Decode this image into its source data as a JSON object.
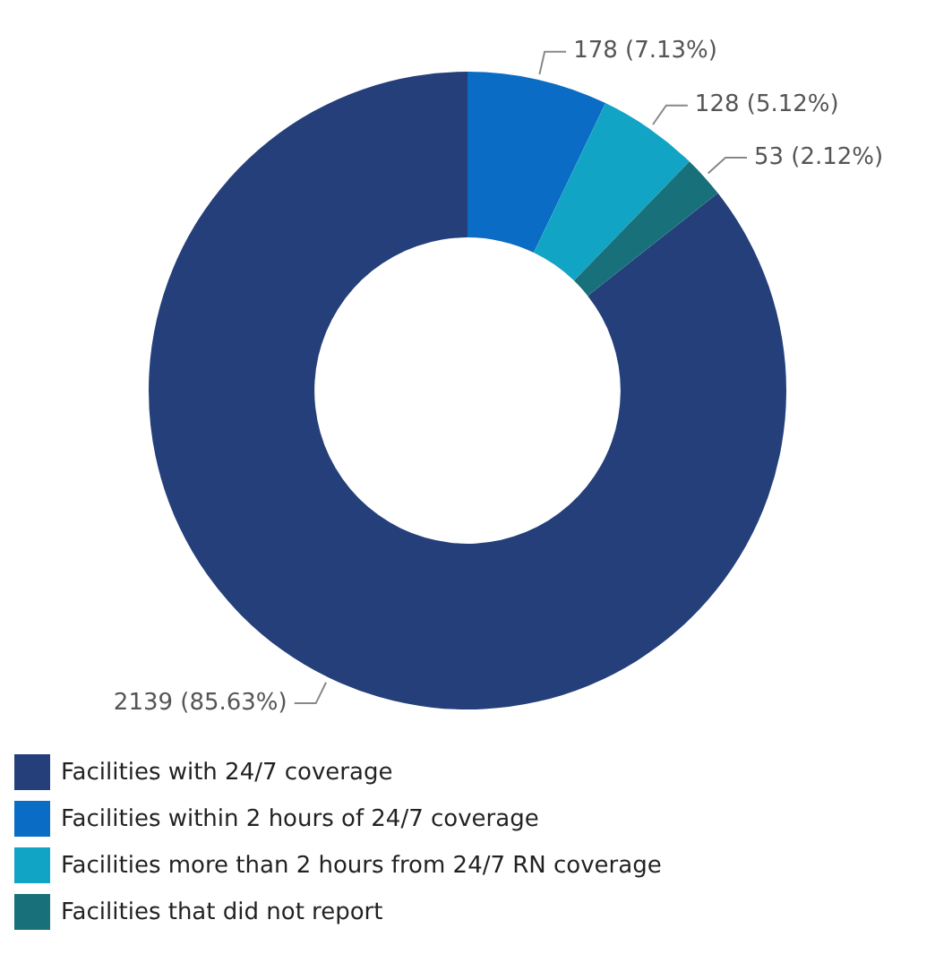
{
  "chart_data": {
    "type": "donut",
    "categories": [
      "Facilities with 24/7 coverage",
      "Facilities within 2 hours of 24/7 coverage",
      "Facilities more than 2 hours from 24/7 RN coverage",
      "Facilities that did not report"
    ],
    "values": [
      2139,
      178,
      128,
      53
    ],
    "colors": [
      "#243f7a",
      "#0a6cc4",
      "#12a4c4",
      "#17707a"
    ],
    "value_labels": [
      "2139 (85.63%)",
      "178 (7.13%)",
      "128 (5.12%)",
      "53 (2.12%)"
    ],
    "legend": "bottom"
  }
}
